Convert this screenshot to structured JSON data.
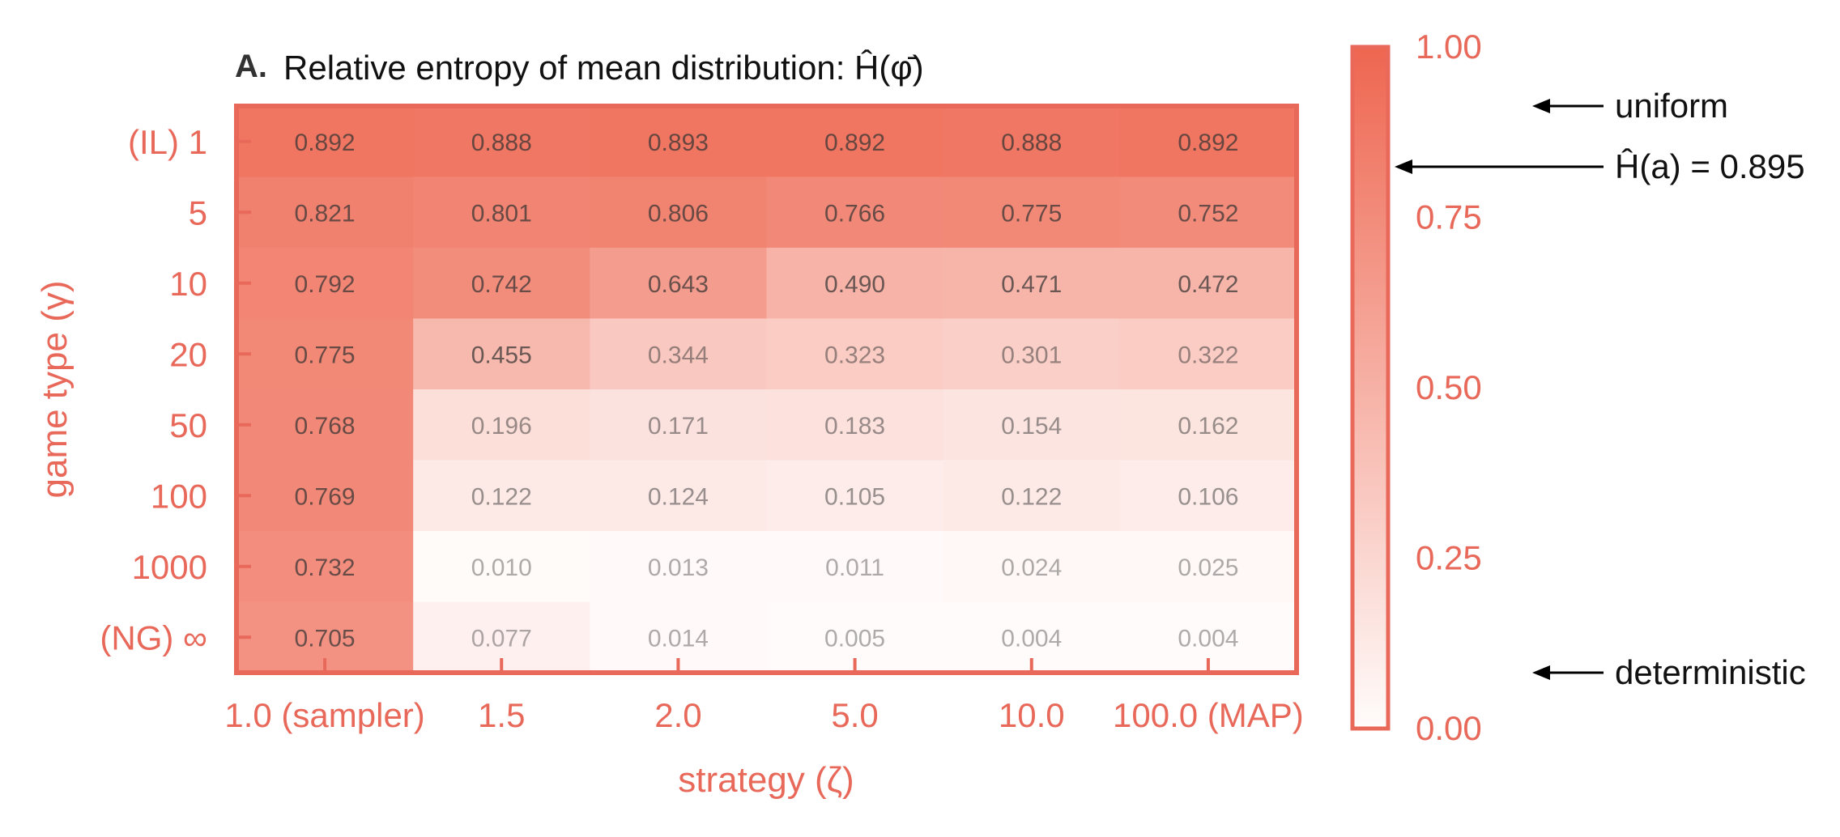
{
  "colors": {
    "accent": "#e8685a",
    "max_color": "#ee6650",
    "min_color": "#fffcfb",
    "text_dark": "#333333",
    "annotation": "#000000"
  },
  "chart_data": {
    "type": "heatmap",
    "panel_label": "A.",
    "title": "Relative entropy of mean distribution: Ĥ(φ̄)",
    "xlabel": "strategy (ζ)",
    "ylabel": "game type (γ)",
    "x_categories": [
      "1.0 (sampler)",
      "1.5",
      "2.0",
      "5.0",
      "10.0",
      "100.0 (MAP)"
    ],
    "y_categories": [
      "(IL) 1",
      "5",
      "10",
      "20",
      "50",
      "100",
      "1000",
      "(NG) ∞"
    ],
    "values": [
      [
        0.892,
        0.888,
        0.893,
        0.892,
        0.888,
        0.892
      ],
      [
        0.821,
        0.801,
        0.806,
        0.766,
        0.775,
        0.752
      ],
      [
        0.792,
        0.742,
        0.643,
        0.49,
        0.471,
        0.472
      ],
      [
        0.775,
        0.455,
        0.344,
        0.323,
        0.301,
        0.322
      ],
      [
        0.768,
        0.196,
        0.171,
        0.183,
        0.154,
        0.162
      ],
      [
        0.769,
        0.122,
        0.124,
        0.105,
        0.122,
        0.106
      ],
      [
        0.732,
        0.01,
        0.013,
        0.011,
        0.024,
        0.025
      ],
      [
        0.705,
        0.077,
        0.014,
        0.005,
        0.004,
        0.004
      ]
    ],
    "value_labels": [
      [
        "0.892",
        "0.888",
        "0.893",
        "0.892",
        "0.888",
        "0.892"
      ],
      [
        "0.821",
        "0.801",
        "0.806",
        "0.766",
        "0.775",
        "0.752"
      ],
      [
        "0.792",
        "0.742",
        "0.643",
        "0.490",
        "0.471",
        "0.472"
      ],
      [
        "0.775",
        "0.455",
        "0.344",
        "0.323",
        "0.301",
        "0.322"
      ],
      [
        "0.768",
        "0.196",
        "0.171",
        "0.183",
        "0.154",
        "0.162"
      ],
      [
        "0.769",
        "0.122",
        "0.124",
        "0.105",
        "0.122",
        "0.106"
      ],
      [
        "0.732",
        "0.010",
        "0.013",
        "0.011",
        "0.024",
        "0.025"
      ],
      [
        "0.705",
        "0.077",
        "0.014",
        "0.005",
        "0.004",
        "0.004"
      ]
    ],
    "colorbar": {
      "vmin": 0.0,
      "vmax": 1.0,
      "ticks": [
        1.0,
        0.75,
        0.5,
        0.25,
        0.0
      ],
      "tick_labels": [
        "1.00",
        "0.75",
        "0.50",
        "0.25",
        "0.00"
      ]
    },
    "annotations": [
      {
        "label": "uniform",
        "value": 1.0
      },
      {
        "label": "Ĥ(a) = 0.895",
        "value": 0.895
      },
      {
        "label": "deterministic",
        "value": 0.0
      }
    ]
  }
}
